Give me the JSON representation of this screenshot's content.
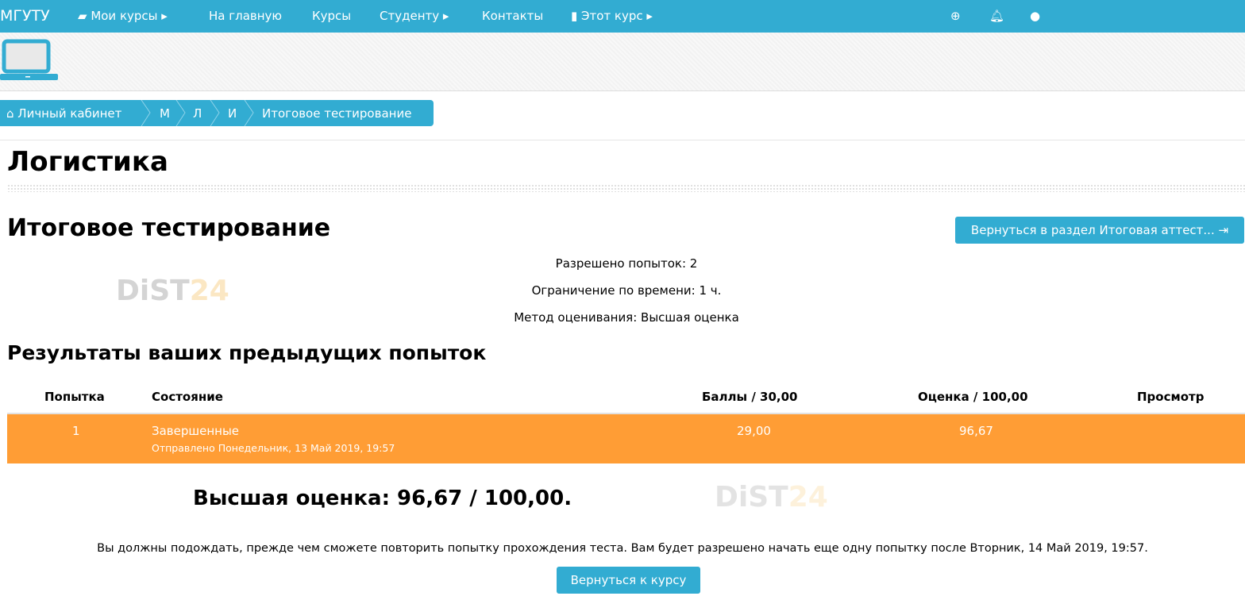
{
  "nav": {
    "brand": "МГУТУ",
    "my_courses": "Мои курсы",
    "home": "На главную",
    "courses": "Курсы",
    "student": "Студенту",
    "contacts": "Контакты",
    "this_course": "Этот курс"
  },
  "breadcrumb": [
    "Личный кабинет",
    "М",
    "Л",
    "И",
    "Итоговое тестирование"
  ],
  "course_title": "Логистика",
  "quiz_title": "Итоговое тестирование",
  "back_section_button": "Вернуться в раздел Итоговая аттест...",
  "info": [
    "Разрешено попыток: 2",
    "Ограничение по времени: 1 ч.",
    "Метод оценивания: Высшая оценка"
  ],
  "watermark": "DiST24",
  "results_heading": "Результаты ваших предыдущих попыток",
  "table": {
    "headers": [
      "Попытка",
      "Состояние",
      "Баллы / 30,00",
      "Оценка / 100,00",
      "Просмотр"
    ],
    "rows": [
      {
        "attempt": "1",
        "state": "Завершенные",
        "submitted": "Отправлено Понедельник, 13 Май 2019, 19:57",
        "points": "29,00",
        "grade": "96,67",
        "review": ""
      }
    ]
  },
  "best_grade": "Высшая оценка: 96,67 / 100,00.",
  "wait_message": "Вы должны подождать, прежде чем сможете повторить попытку прохождения теста. Вам будет разрешено начать еще одну попытку после Вторник, 14 Май 2019, 19:57.",
  "back_course_button": "Вернуться к курсу",
  "colors": {
    "primary": "#32acd2",
    "row_highlight": "#ff9d35"
  }
}
